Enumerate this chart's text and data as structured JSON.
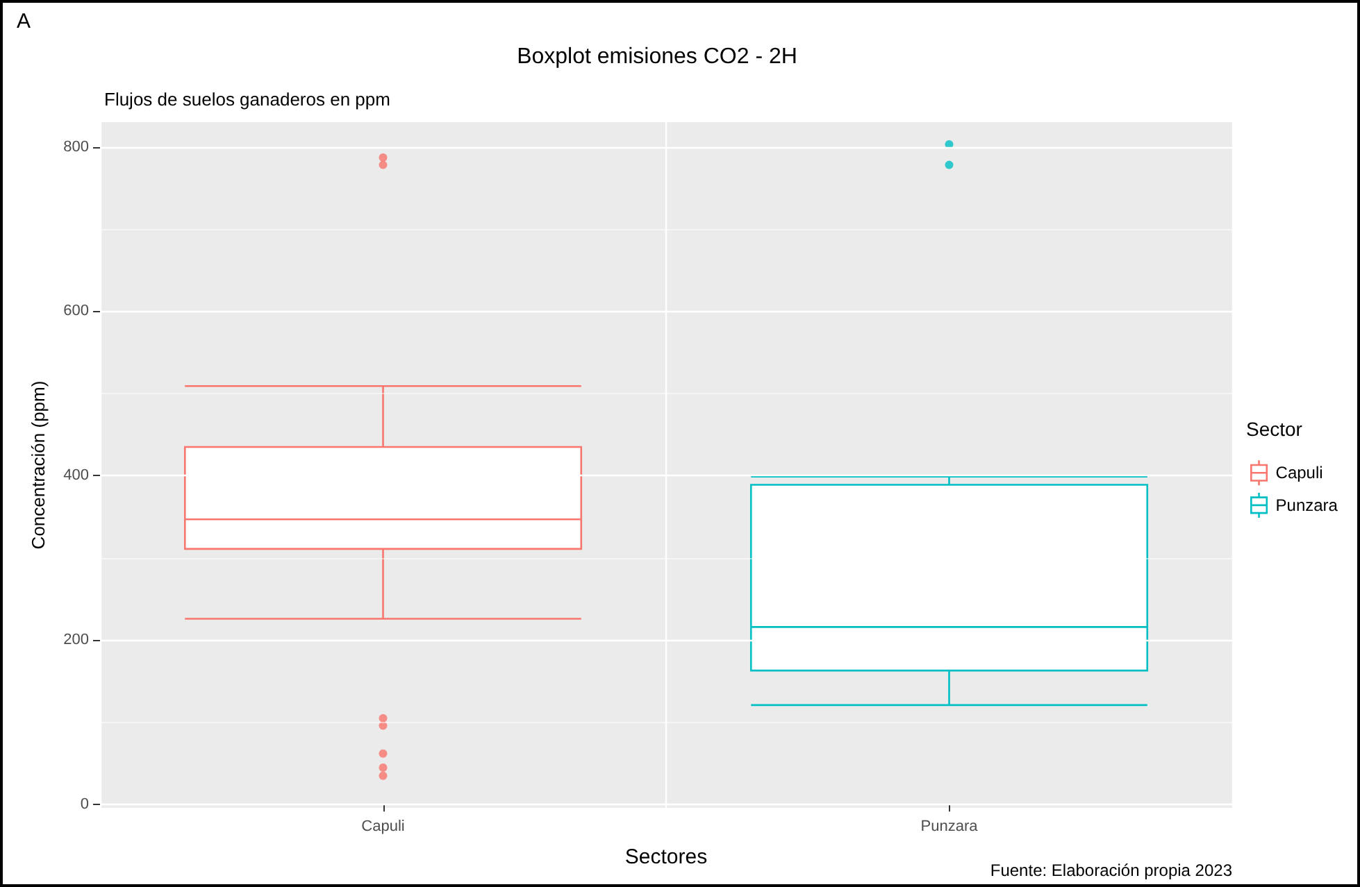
{
  "chart_data": {
    "type": "box",
    "title": "Boxplot emisiones CO2 - 2H",
    "subtitle": "Flujos de suelos ganaderos en ppm",
    "xlabel": "Sectores",
    "ylabel": "Concentración (ppm)",
    "legend_title": "Sector",
    "legend": "right",
    "grid": true,
    "categories": [
      "Capuli",
      "Punzara"
    ],
    "ylim": [
      -4,
      830
    ],
    "yticks": [
      0,
      200,
      400,
      600,
      800
    ],
    "annotations": [
      "A",
      "Fuente: Elaboración propia 2023"
    ],
    "series": [
      {
        "name": "Capuli",
        "color": "#f8766d",
        "boxes": [
          {
            "low": 226,
            "q1": 311,
            "median": 347,
            "q3": 435,
            "high": 509,
            "outliers": [
              787,
              778,
              105,
              96,
              62,
              45,
              35
            ]
          },
          null
        ]
      },
      {
        "name": "Punzara",
        "color": "#00bfc4",
        "boxes": [
          null,
          {
            "low": 121,
            "q1": 163,
            "median": 216,
            "q3": 389,
            "high": 399,
            "outliers": [
              803,
              778
            ]
          }
        ]
      }
    ]
  }
}
